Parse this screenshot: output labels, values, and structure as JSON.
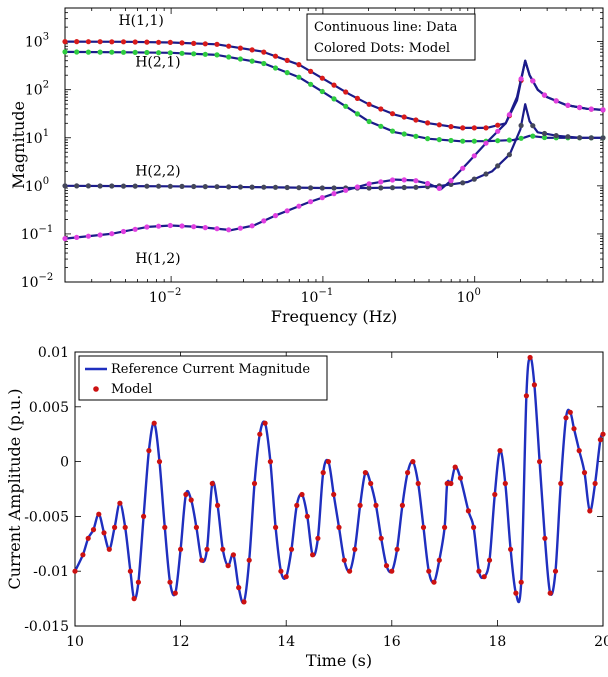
{
  "colors": {
    "data_line_top": "#1b1b8a",
    "data_line_bottom": "#1f2fbf",
    "dot_h11": "#d81b1b",
    "dot_h21": "#2ecc40",
    "dot_h22": "#44475a",
    "dot_h12": "#e040e0",
    "dot_bottom": "#cc1111"
  },
  "chart_data": [
    {
      "type": "line",
      "xscale": "log",
      "yscale": "log",
      "xlim": [
        0.002,
        7
      ],
      "ylim": [
        0.01,
        5000
      ],
      "xlabel": "Frequency (Hz)",
      "ylabel": "Magnitude",
      "xticks": [
        {
          "value": 0.01,
          "base": "10",
          "exp": "−2"
        },
        {
          "value": 0.1,
          "base": "10",
          "exp": "−1"
        },
        {
          "value": 1,
          "base": "10",
          "exp": "0"
        }
      ],
      "yticks": [
        {
          "value": 0.01,
          "base": "10",
          "exp": "−2"
        },
        {
          "value": 0.1,
          "base": "10",
          "exp": "−1"
        },
        {
          "value": 1,
          "base": "10",
          "exp": "0"
        },
        {
          "value": 10,
          "base": "10",
          "exp": "1"
        },
        {
          "value": 100,
          "base": "10",
          "exp": "2"
        },
        {
          "value": 1000,
          "base": "10",
          "exp": "3"
        }
      ],
      "legend": {
        "line1": "Continuous line: Data",
        "line2": "Colored Dots: Model",
        "placement": "top-right"
      },
      "series": [
        {
          "name": "H(1,1)",
          "label_at": [
            0.0045,
            2200
          ],
          "points": [
            [
              0.002,
              1000
            ],
            [
              0.005,
              990
            ],
            [
              0.01,
              960
            ],
            [
              0.02,
              880
            ],
            [
              0.04,
              620
            ],
            [
              0.07,
              330
            ],
            [
              0.1,
              170
            ],
            [
              0.15,
              80
            ],
            [
              0.2,
              50
            ],
            [
              0.3,
              30
            ],
            [
              0.5,
              20
            ],
            [
              0.8,
              16
            ],
            [
              1.2,
              16
            ],
            [
              1.6,
              20
            ],
            [
              1.9,
              60
            ],
            [
              2.15,
              400
            ],
            [
              2.3,
              200
            ],
            [
              2.6,
              100
            ],
            [
              3,
              70
            ],
            [
              4,
              48
            ],
            [
              5.5,
              40
            ],
            [
              7,
              38
            ]
          ]
        },
        {
          "name": "H(2,1)",
          "label_at": [
            0.0058,
            300
          ],
          "points": [
            [
              0.002,
              610
            ],
            [
              0.005,
              600
            ],
            [
              0.01,
              585
            ],
            [
              0.02,
              530
            ],
            [
              0.04,
              360
            ],
            [
              0.07,
              180
            ],
            [
              0.1,
              90
            ],
            [
              0.15,
              40
            ],
            [
              0.2,
              22
            ],
            [
              0.3,
              13
            ],
            [
              0.5,
              9.5
            ],
            [
              0.8,
              8.5
            ],
            [
              1.2,
              8.5
            ],
            [
              1.8,
              9
            ],
            [
              2.1,
              10
            ],
            [
              2.3,
              11
            ],
            [
              3,
              10
            ],
            [
              5,
              10
            ],
            [
              7,
              10
            ]
          ]
        },
        {
          "name": "H(2,2)",
          "label_at": [
            0.0058,
            1.65
          ],
          "points": [
            [
              0.002,
              1.0
            ],
            [
              0.01,
              0.98
            ],
            [
              0.05,
              0.93
            ],
            [
              0.1,
              0.9
            ],
            [
              0.2,
              0.9
            ],
            [
              0.4,
              0.93
            ],
            [
              0.6,
              1.0
            ],
            [
              0.9,
              1.2
            ],
            [
              1.3,
              2.0
            ],
            [
              1.7,
              4.5
            ],
            [
              2.0,
              15
            ],
            [
              2.15,
              50
            ],
            [
              2.3,
              22
            ],
            [
              2.6,
              13
            ],
            [
              3.5,
              11
            ],
            [
              5,
              10
            ],
            [
              7,
              10
            ]
          ]
        },
        {
          "name": "H(1,2)",
          "label_at": [
            0.0058,
            0.025
          ],
          "points": [
            [
              0.002,
              0.08
            ],
            [
              0.004,
              0.1
            ],
            [
              0.007,
              0.14
            ],
            [
              0.01,
              0.15
            ],
            [
              0.015,
              0.14
            ],
            [
              0.025,
              0.12
            ],
            [
              0.035,
              0.15
            ],
            [
              0.05,
              0.25
            ],
            [
              0.08,
              0.45
            ],
            [
              0.12,
              0.7
            ],
            [
              0.2,
              1.1
            ],
            [
              0.3,
              1.35
            ],
            [
              0.4,
              1.3
            ],
            [
              0.5,
              1.1
            ],
            [
              0.6,
              0.85
            ],
            [
              0.7,
              1.3
            ],
            [
              0.9,
              3
            ],
            [
              1.2,
              8
            ],
            [
              1.6,
              20
            ],
            [
              1.9,
              70
            ],
            [
              2.15,
              400
            ],
            [
              2.3,
              200
            ],
            [
              2.6,
              100
            ],
            [
              3,
              70
            ],
            [
              4,
              48
            ],
            [
              5.5,
              40
            ],
            [
              7,
              38
            ]
          ]
        }
      ]
    },
    {
      "type": "line",
      "xlim": [
        10,
        20
      ],
      "ylim": [
        -0.015,
        0.01
      ],
      "xlabel": "Time (s)",
      "ylabel": "Current Amplitude (p.u.)",
      "xticks": [
        10,
        12,
        14,
        16,
        18,
        20
      ],
      "yticks": [
        {
          "value": -0.015,
          "label": "-0.015"
        },
        {
          "value": -0.01,
          "label": "-0.01"
        },
        {
          "value": -0.005,
          "label": "-0.005"
        },
        {
          "value": 0,
          "label": "0"
        },
        {
          "value": 0.005,
          "label": "0.005"
        },
        {
          "value": 0.01,
          "label": "0.01"
        }
      ],
      "legend": {
        "line_label": "Reference Current Magnitude",
        "dot_label": "Model",
        "placement": "top-left"
      },
      "points": [
        [
          10,
          -0.01
        ],
        [
          10.15,
          -0.0085
        ],
        [
          10.25,
          -0.007
        ],
        [
          10.35,
          -0.0062
        ],
        [
          10.45,
          -0.0048
        ],
        [
          10.55,
          -0.0065
        ],
        [
          10.65,
          -0.008
        ],
        [
          10.75,
          -0.006
        ],
        [
          10.85,
          -0.0038
        ],
        [
          10.95,
          -0.006
        ],
        [
          11.05,
          -0.01
        ],
        [
          11.12,
          -0.0125
        ],
        [
          11.2,
          -0.011
        ],
        [
          11.3,
          -0.005
        ],
        [
          11.4,
          0.001
        ],
        [
          11.5,
          0.0035
        ],
        [
          11.6,
          0.0
        ],
        [
          11.7,
          -0.006
        ],
        [
          11.8,
          -0.011
        ],
        [
          11.9,
          -0.012
        ],
        [
          12.0,
          -0.008
        ],
        [
          12.1,
          -0.003
        ],
        [
          12.2,
          -0.0035
        ],
        [
          12.3,
          -0.006
        ],
        [
          12.4,
          -0.009
        ],
        [
          12.5,
          -0.008
        ],
        [
          12.6,
          -0.002
        ],
        [
          12.7,
          -0.004
        ],
        [
          12.8,
          -0.008
        ],
        [
          12.9,
          -0.0095
        ],
        [
          13.0,
          -0.0085
        ],
        [
          13.1,
          -0.0115
        ],
        [
          13.2,
          -0.0128
        ],
        [
          13.3,
          -0.009
        ],
        [
          13.4,
          -0.002
        ],
        [
          13.5,
          0.0025
        ],
        [
          13.6,
          0.0035
        ],
        [
          13.7,
          0.0
        ],
        [
          13.8,
          -0.006
        ],
        [
          13.9,
          -0.01
        ],
        [
          14.0,
          -0.0105
        ],
        [
          14.1,
          -0.008
        ],
        [
          14.2,
          -0.004
        ],
        [
          14.3,
          -0.003
        ],
        [
          14.4,
          -0.005
        ],
        [
          14.5,
          -0.0085
        ],
        [
          14.6,
          -0.007
        ],
        [
          14.7,
          -0.001
        ],
        [
          14.8,
          0.0
        ],
        [
          14.9,
          -0.003
        ],
        [
          15.0,
          -0.006
        ],
        [
          15.1,
          -0.009
        ],
        [
          15.2,
          -0.01
        ],
        [
          15.3,
          -0.008
        ],
        [
          15.4,
          -0.004
        ],
        [
          15.5,
          -0.001
        ],
        [
          15.6,
          -0.002
        ],
        [
          15.7,
          -0.004
        ],
        [
          15.8,
          -0.007
        ],
        [
          15.9,
          -0.0095
        ],
        [
          16.0,
          -0.01
        ],
        [
          16.1,
          -0.008
        ],
        [
          16.2,
          -0.004
        ],
        [
          16.3,
          -0.001
        ],
        [
          16.4,
          0.0
        ],
        [
          16.5,
          -0.002
        ],
        [
          16.6,
          -0.006
        ],
        [
          16.7,
          -0.01
        ],
        [
          16.8,
          -0.011
        ],
        [
          16.9,
          -0.009
        ],
        [
          17.0,
          -0.006
        ],
        [
          17.05,
          -0.002
        ],
        [
          17.12,
          -0.002
        ],
        [
          17.2,
          -0.0005
        ],
        [
          17.3,
          -0.0015
        ],
        [
          17.45,
          -0.0045
        ],
        [
          17.55,
          -0.006
        ],
        [
          17.65,
          -0.01
        ],
        [
          17.75,
          -0.0105
        ],
        [
          17.85,
          -0.009
        ],
        [
          17.95,
          -0.003
        ],
        [
          18.05,
          0.001
        ],
        [
          18.15,
          -0.002
        ],
        [
          18.25,
          -0.008
        ],
        [
          18.35,
          -0.012
        ],
        [
          18.45,
          -0.011
        ],
        [
          18.55,
          0.006
        ],
        [
          18.62,
          0.0095
        ],
        [
          18.7,
          0.007
        ],
        [
          18.8,
          0.0
        ],
        [
          18.9,
          -0.007
        ],
        [
          19.0,
          -0.012
        ],
        [
          19.1,
          -0.01
        ],
        [
          19.2,
          -0.002
        ],
        [
          19.3,
          0.004
        ],
        [
          19.38,
          0.0045
        ],
        [
          19.45,
          0.003
        ],
        [
          19.55,
          0.001
        ],
        [
          19.65,
          -0.001
        ],
        [
          19.75,
          -0.0045
        ],
        [
          19.85,
          -0.002
        ],
        [
          19.95,
          0.002
        ],
        [
          20.0,
          0.0025
        ]
      ]
    }
  ]
}
